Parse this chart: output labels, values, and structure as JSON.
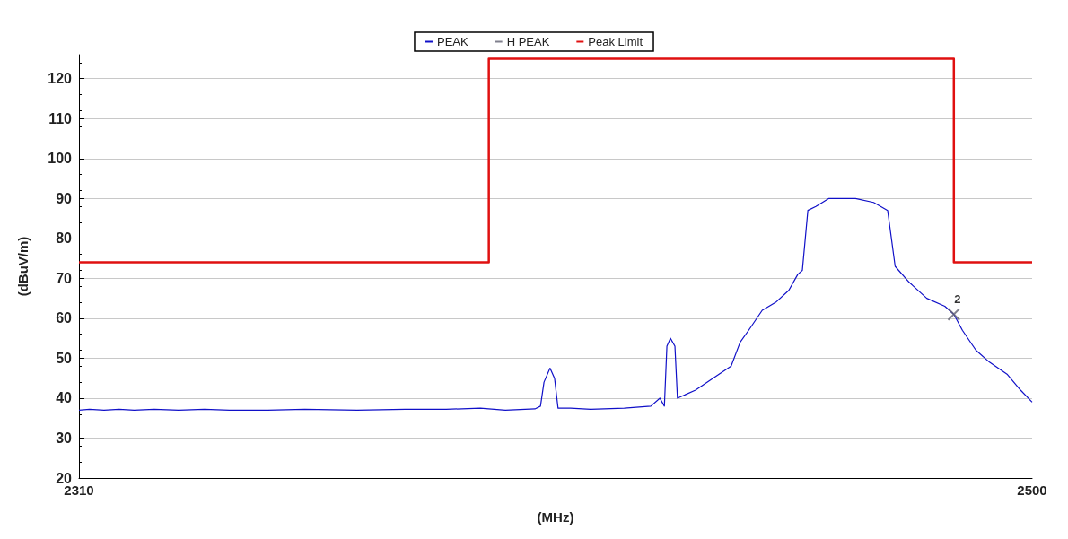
{
  "chart_data": {
    "type": "line",
    "xlabel": "(MHz)",
    "ylabel": "(dBuV/m)",
    "xlim": [
      2310,
      2500
    ],
    "xticks": [
      2310,
      2500
    ],
    "ylim": [
      20,
      126
    ],
    "yticks": [
      20,
      30,
      40,
      50,
      60,
      70,
      80,
      90,
      100,
      110,
      120
    ],
    "grid": "y",
    "legend": "top",
    "marker": "none",
    "line_style": "solid",
    "annotations": [
      {
        "text": "2",
        "x": 2484.4,
        "y": 61
      }
    ],
    "series": [
      {
        "name": "PEAK",
        "color": "#1010c8",
        "x": [
          2310,
          2312.1,
          2315,
          2318,
          2321,
          2325,
          2329.9,
          2335,
          2340,
          2347.6,
          2355,
          2365.4,
          2375,
          2383.2,
          2390,
          2395,
          2400.9,
          2402,
          2402.7,
          2403.9,
          2404.8,
          2405.5,
          2408,
          2412,
          2418.7,
          2424,
          2425.8,
          2426.7,
          2427.2,
          2427.9,
          2428.8,
          2429.3,
          2432.9,
          2436.4,
          2440,
          2441.8,
          2443.5,
          2446.2,
          2448.9,
          2451.5,
          2453.3,
          2454.2,
          2455.3,
          2456.9,
          2459.5,
          2464.8,
          2468.4,
          2471.2,
          2472.7,
          2475.5,
          2479,
          2482.6,
          2484.4,
          2486.1,
          2488.8,
          2491.5,
          2495,
          2497.7,
          2500
        ],
        "values": [
          37,
          37.2,
          37,
          37.2,
          37,
          37.2,
          37,
          37.2,
          37,
          37,
          37.2,
          37,
          37.2,
          37.2,
          37.5,
          37,
          37.3,
          38,
          44,
          47.5,
          45,
          37.5,
          37.5,
          37.2,
          37.5,
          38,
          40,
          38,
          53,
          55,
          53,
          40,
          42,
          45,
          48,
          54,
          57,
          62,
          64,
          67,
          71,
          72,
          87,
          88,
          90,
          90,
          89,
          87,
          73,
          69,
          65,
          63,
          61,
          57,
          52,
          49,
          46,
          42,
          39
        ]
      },
      {
        "name": "H PEAK",
        "color": "#606070",
        "type": "scatter",
        "marker": "cross",
        "x": [
          2484.4
        ],
        "values": [
          61
        ]
      },
      {
        "name": "Peak Limit",
        "color": "#e01010",
        "type": "step",
        "x": [
          2310,
          2391.7,
          2484.4,
          2500
        ],
        "values": [
          74,
          125,
          74,
          74
        ]
      }
    ]
  }
}
